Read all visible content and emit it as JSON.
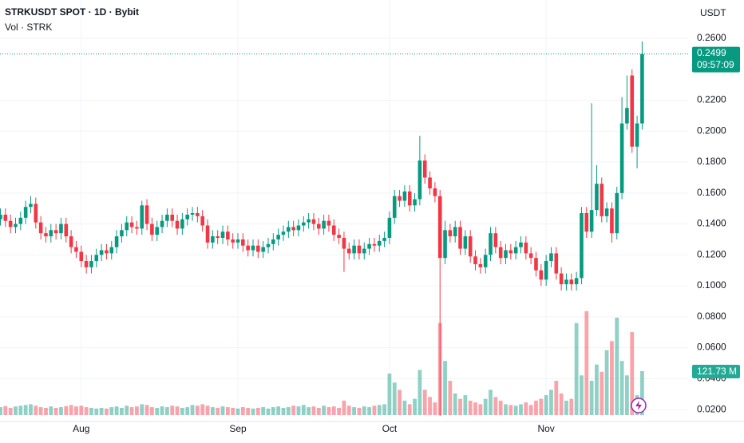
{
  "chart_data": {
    "type": "candlestick",
    "title": "STRKUSDT SPOT · 1D · Bybit",
    "y_axis_label": "USDT",
    "up_color": "#089981",
    "down_color": "#f23645",
    "grid": true,
    "countdown": "09:57:09",
    "ylim": [
      0.0123,
      0.2848
    ],
    "yticks": [
      {
        "value": 0.02,
        "label": "0.0200"
      },
      {
        "value": 0.04,
        "label": "0.0400"
      },
      {
        "value": 0.06,
        "label": "0.0600"
      },
      {
        "value": 0.08,
        "label": "0.0800"
      },
      {
        "value": 0.1,
        "label": "0.1000"
      },
      {
        "value": 0.12,
        "label": "0.1200"
      },
      {
        "value": 0.14,
        "label": "0.1400"
      },
      {
        "value": 0.16,
        "label": "0.1600"
      },
      {
        "value": 0.18,
        "label": "0.1800"
      },
      {
        "value": 0.2,
        "label": "0.2000"
      },
      {
        "value": 0.22,
        "label": "0.2200"
      },
      {
        "value": 0.26,
        "label": "0.2600"
      }
    ],
    "xticks": [
      {
        "value": 16,
        "label": "Aug"
      },
      {
        "value": 47,
        "label": "Sep"
      },
      {
        "value": 77,
        "label": "Oct"
      },
      {
        "value": 108,
        "label": "Nov"
      }
    ],
    "open": [
      0.143,
      0.146,
      0.142,
      0.138,
      0.14,
      0.144,
      0.151,
      0.153,
      0.141,
      0.134,
      0.132,
      0.136,
      0.134,
      0.14,
      0.132,
      0.125,
      0.122,
      0.116,
      0.112,
      0.116,
      0.12,
      0.123,
      0.121,
      0.125,
      0.132,
      0.136,
      0.141,
      0.138,
      0.137,
      0.152,
      0.14,
      0.133,
      0.138,
      0.142,
      0.146,
      0.142,
      0.137,
      0.143,
      0.146,
      0.147,
      0.145,
      0.139,
      0.128,
      0.132,
      0.131,
      0.135,
      0.13,
      0.128,
      0.13,
      0.126,
      0.123,
      0.126,
      0.122,
      0.125,
      0.127,
      0.13,
      0.133,
      0.135,
      0.138,
      0.136,
      0.139,
      0.141,
      0.143,
      0.14,
      0.137,
      0.142,
      0.139,
      0.133,
      0.131,
      0.124,
      0.121,
      0.126,
      0.121,
      0.124,
      0.127,
      0.126,
      0.129,
      0.131,
      0.144,
      0.158,
      0.155,
      0.161,
      0.152,
      0.156,
      0.181,
      0.17,
      0.163,
      0.158,
      0.118,
      0.136,
      0.132,
      0.138,
      0.124,
      0.132,
      0.119,
      0.114,
      0.112,
      0.12,
      0.134,
      0.125,
      0.118,
      0.123,
      0.121,
      0.125,
      0.128,
      0.121,
      0.118,
      0.11,
      0.104,
      0.116,
      0.121,
      0.108,
      0.101,
      0.104,
      0.101,
      0.105,
      0.147,
      0.135,
      0.149,
      0.166,
      0.145,
      0.15,
      0.134,
      0.16,
      0.205,
      0.236,
      0.19,
      0.205
    ],
    "high": [
      0.15,
      0.15,
      0.146,
      0.144,
      0.148,
      0.155,
      0.158,
      0.157,
      0.145,
      0.138,
      0.14,
      0.14,
      0.144,
      0.144,
      0.136,
      0.129,
      0.126,
      0.12,
      0.12,
      0.124,
      0.127,
      0.127,
      0.129,
      0.136,
      0.14,
      0.145,
      0.145,
      0.142,
      0.155,
      0.156,
      0.144,
      0.142,
      0.146,
      0.15,
      0.15,
      0.146,
      0.147,
      0.15,
      0.151,
      0.151,
      0.149,
      0.143,
      0.136,
      0.136,
      0.139,
      0.139,
      0.134,
      0.134,
      0.134,
      0.13,
      0.13,
      0.13,
      0.129,
      0.131,
      0.134,
      0.137,
      0.139,
      0.142,
      0.142,
      0.143,
      0.145,
      0.147,
      0.147,
      0.144,
      0.146,
      0.146,
      0.143,
      0.137,
      0.135,
      0.128,
      0.13,
      0.13,
      0.128,
      0.131,
      0.131,
      0.133,
      0.135,
      0.148,
      0.162,
      0.162,
      0.165,
      0.165,
      0.16,
      0.197,
      0.185,
      0.174,
      0.167,
      0.162,
      0.142,
      0.14,
      0.142,
      0.142,
      0.136,
      0.136,
      0.123,
      0.118,
      0.124,
      0.138,
      0.138,
      0.129,
      0.127,
      0.127,
      0.129,
      0.132,
      0.132,
      0.125,
      0.122,
      0.114,
      0.12,
      0.125,
      0.125,
      0.112,
      0.108,
      0.108,
      0.109,
      0.151,
      0.151,
      0.218,
      0.178,
      0.17,
      0.154,
      0.154,
      0.164,
      0.222,
      0.236,
      0.24,
      0.21,
      0.258
    ],
    "low": [
      0.139,
      0.138,
      0.134,
      0.134,
      0.136,
      0.14,
      0.147,
      0.137,
      0.13,
      0.128,
      0.128,
      0.13,
      0.13,
      0.128,
      0.121,
      0.118,
      0.112,
      0.108,
      0.108,
      0.112,
      0.116,
      0.117,
      0.117,
      0.121,
      0.128,
      0.132,
      0.134,
      0.133,
      0.133,
      0.136,
      0.129,
      0.129,
      0.134,
      0.138,
      0.138,
      0.133,
      0.133,
      0.139,
      0.142,
      0.141,
      0.135,
      0.124,
      0.124,
      0.127,
      0.127,
      0.126,
      0.124,
      0.124,
      0.122,
      0.119,
      0.119,
      0.118,
      0.118,
      0.121,
      0.123,
      0.126,
      0.129,
      0.131,
      0.132,
      0.132,
      0.135,
      0.137,
      0.136,
      0.133,
      0.133,
      0.135,
      0.129,
      0.127,
      0.109,
      0.117,
      0.117,
      0.117,
      0.117,
      0.12,
      0.122,
      0.122,
      0.125,
      0.127,
      0.14,
      0.151,
      0.151,
      0.148,
      0.148,
      0.152,
      0.166,
      0.159,
      0.154,
      0.016,
      0.114,
      0.128,
      0.128,
      0.12,
      0.12,
      0.115,
      0.11,
      0.108,
      0.108,
      0.116,
      0.121,
      0.114,
      0.114,
      0.117,
      0.117,
      0.121,
      0.117,
      0.114,
      0.106,
      0.1,
      0.1,
      0.112,
      0.104,
      0.097,
      0.097,
      0.097,
      0.097,
      0.101,
      0.131,
      0.131,
      0.145,
      0.141,
      0.141,
      0.128,
      0.13,
      0.156,
      0.201,
      0.186,
      0.176,
      0.201
    ],
    "close": [
      0.146,
      0.142,
      0.138,
      0.14,
      0.144,
      0.151,
      0.153,
      0.141,
      0.134,
      0.132,
      0.136,
      0.134,
      0.14,
      0.132,
      0.125,
      0.122,
      0.116,
      0.112,
      0.116,
      0.12,
      0.123,
      0.121,
      0.125,
      0.132,
      0.136,
      0.141,
      0.138,
      0.137,
      0.152,
      0.14,
      0.133,
      0.138,
      0.142,
      0.146,
      0.142,
      0.137,
      0.143,
      0.146,
      0.147,
      0.145,
      0.139,
      0.128,
      0.132,
      0.131,
      0.135,
      0.13,
      0.128,
      0.13,
      0.126,
      0.123,
      0.126,
      0.122,
      0.125,
      0.127,
      0.13,
      0.133,
      0.135,
      0.138,
      0.136,
      0.139,
      0.141,
      0.143,
      0.14,
      0.137,
      0.142,
      0.139,
      0.133,
      0.131,
      0.124,
      0.121,
      0.126,
      0.121,
      0.124,
      0.127,
      0.126,
      0.129,
      0.131,
      0.144,
      0.158,
      0.155,
      0.161,
      0.152,
      0.156,
      0.181,
      0.17,
      0.163,
      0.158,
      0.118,
      0.136,
      0.132,
      0.138,
      0.124,
      0.132,
      0.119,
      0.114,
      0.112,
      0.12,
      0.134,
      0.125,
      0.118,
      0.123,
      0.121,
      0.125,
      0.128,
      0.121,
      0.118,
      0.11,
      0.104,
      0.116,
      0.121,
      0.108,
      0.101,
      0.104,
      0.101,
      0.105,
      0.147,
      0.135,
      0.149,
      0.166,
      0.145,
      0.15,
      0.134,
      0.16,
      0.205,
      0.215,
      0.19,
      0.205,
      0.2499
    ],
    "volume": {
      "name": "Vol · STRK",
      "last_label": "121.73 M",
      "values": [
        22,
        25,
        20,
        24,
        26,
        28,
        30,
        26,
        22,
        20,
        24,
        20,
        22,
        25,
        28,
        24,
        26,
        22,
        20,
        18,
        20,
        18,
        22,
        24,
        20,
        26,
        22,
        24,
        30,
        28,
        22,
        20,
        24,
        22,
        26,
        24,
        20,
        22,
        28,
        26,
        30,
        26,
        22,
        20,
        24,
        22,
        20,
        18,
        22,
        20,
        18,
        20,
        22,
        18,
        22,
        24,
        20,
        22,
        26,
        24,
        28,
        22,
        24,
        20,
        26,
        22,
        24,
        20,
        40,
        26,
        22,
        20,
        24,
        22,
        26,
        28,
        30,
        115,
        90,
        70,
        40,
        30,
        45,
        125,
        70,
        50,
        35,
        255,
        150,
        95,
        60,
        45,
        55,
        40,
        35,
        30,
        45,
        70,
        50,
        40,
        30,
        28,
        26,
        30,
        35,
        28,
        40,
        45,
        55,
        70,
        95,
        60,
        40,
        45,
        255,
        110,
        288,
        95,
        140,
        120,
        180,
        205,
        270,
        150,
        110,
        230,
        55,
        121.73
      ]
    }
  }
}
